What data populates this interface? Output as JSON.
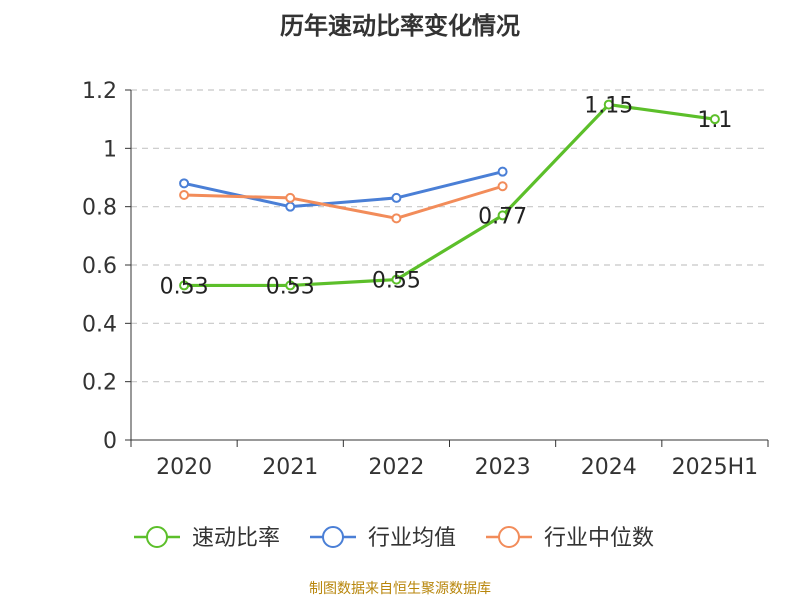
{
  "chart_data": {
    "type": "line",
    "title": "历年速动比率变化情况",
    "categories": [
      "2020",
      "2021",
      "2022",
      "2023",
      "2024",
      "2025H1"
    ],
    "series": [
      {
        "name": "速动比率",
        "color": "#5cbf2a",
        "values": [
          0.53,
          0.53,
          0.55,
          0.77,
          1.15,
          1.1
        ],
        "data_labels": [
          "0.53",
          "0.53",
          "0.55",
          "0.77",
          "1.15",
          "1.1"
        ]
      },
      {
        "name": "行业均值",
        "color": "#4a7fd6",
        "values": [
          0.88,
          0.8,
          0.83,
          0.92,
          null,
          null
        ]
      },
      {
        "name": "行业中位数",
        "color": "#f28c5a",
        "values": [
          0.84,
          0.83,
          0.76,
          0.87,
          null,
          null
        ]
      }
    ],
    "ylim": [
      0,
      1.2
    ],
    "yticks": [
      "0",
      "0.2",
      "0.4",
      "0.6",
      "0.8",
      "1",
      "1.2"
    ],
    "xlabel": "",
    "ylabel": "",
    "grid": "horizontal-dashed",
    "legend_position": "bottom"
  },
  "footer": {
    "source": "制图数据来自恒生聚源数据库"
  }
}
